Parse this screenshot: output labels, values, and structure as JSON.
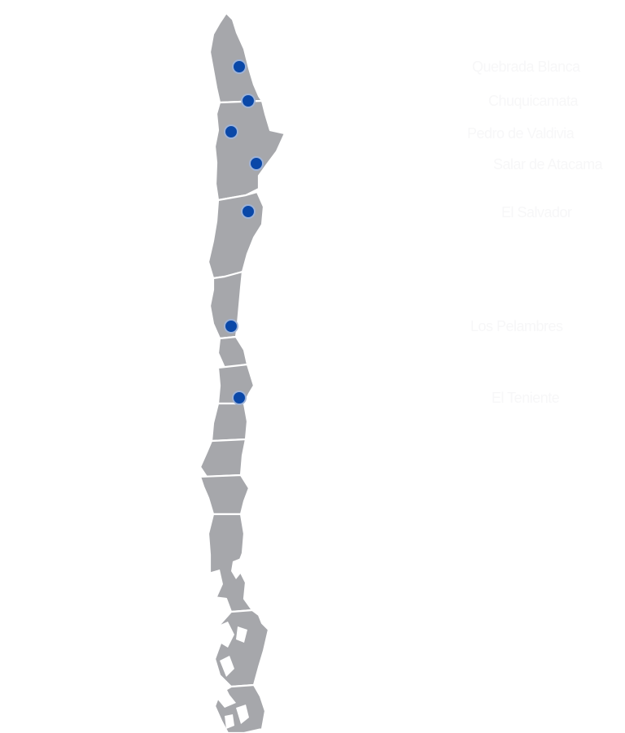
{
  "map": {
    "land_color": "#a6a7ab",
    "border_color": "#ffffff",
    "marker_color": "#0a48a8",
    "label_color": "#f7f7f8"
  },
  "sites": [
    {
      "id": "quebrada-blanca",
      "name": "Quebrada Blanca"
    },
    {
      "id": "chuquicamata",
      "name": "Chuquicamata"
    },
    {
      "id": "pedro-de-valdivia",
      "name": "Pedro de Valdivia"
    },
    {
      "id": "salar-de-atacama",
      "name": "Salar de Atacama"
    },
    {
      "id": "el-salvador",
      "name": "El Salvador"
    },
    {
      "id": "los-pelambres",
      "name": "Los Pelambres"
    },
    {
      "id": "el-teniente",
      "name": "El Teniente"
    }
  ]
}
